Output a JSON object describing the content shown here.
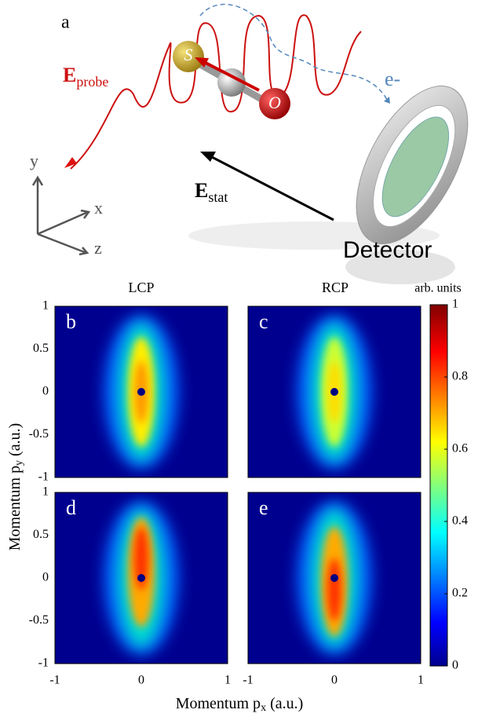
{
  "figure": {
    "panel_a": {
      "label": "a",
      "e_probe": {
        "symbol": "E",
        "subscript": "probe"
      },
      "electron": "e-",
      "axes": [
        "y",
        "x",
        "z"
      ],
      "e_stat": {
        "symbol": "E",
        "subscript": "stat"
      },
      "detector": "Detector",
      "atoms": [
        "S",
        "O"
      ]
    },
    "columns": [
      "LCP",
      "RCP"
    ],
    "panels": [
      "b",
      "c",
      "d",
      "e"
    ],
    "yticks": [
      -1,
      -0.5,
      0,
      0.5,
      1
    ],
    "xticks": [
      -1,
      0,
      1
    ],
    "y_label": {
      "text": "Momentum p",
      "subscript": "y",
      "unit": "(a.u.)"
    },
    "x_label": {
      "text": "Momentum p",
      "subscript": "x",
      "unit": "(a.u.)"
    },
    "colorbar": {
      "label": "arb. units",
      "ticks": [
        0,
        0.2,
        0.4,
        0.6,
        0.8,
        1
      ]
    }
  }
}
